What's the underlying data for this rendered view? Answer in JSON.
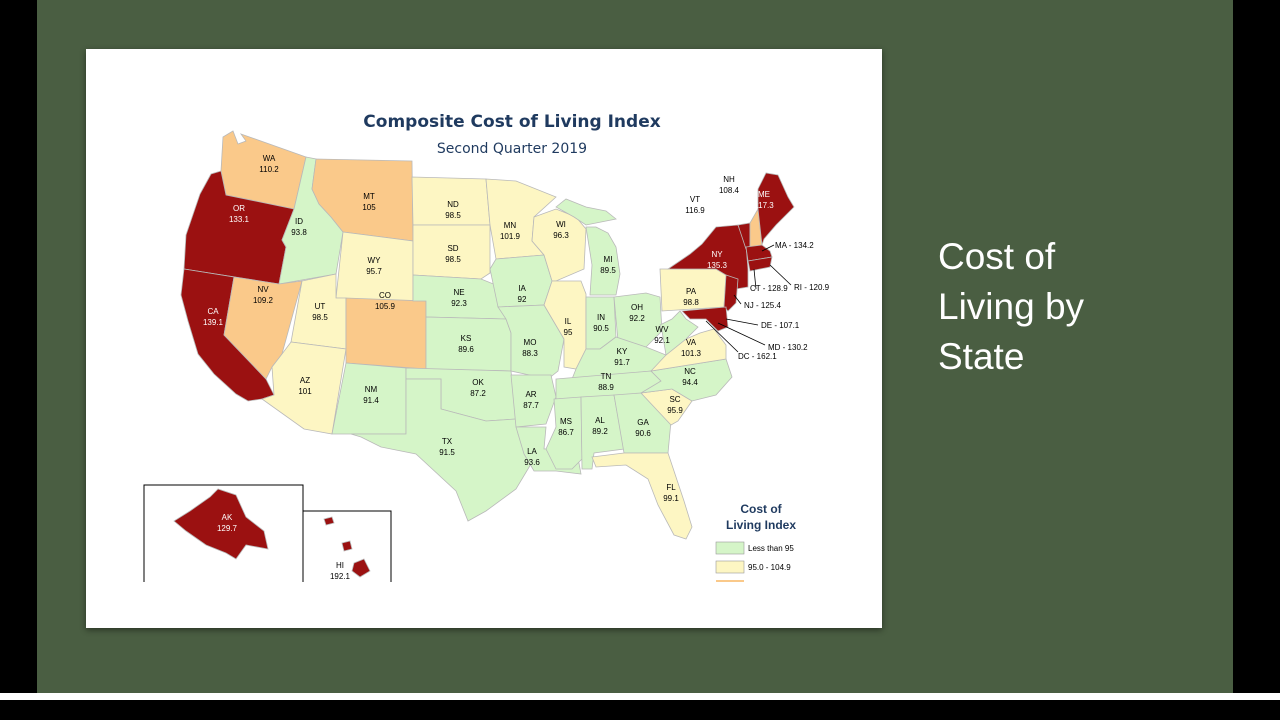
{
  "slide": {
    "title_lines": [
      "Cost of",
      "Living by",
      "State"
    ]
  },
  "map": {
    "title": "Composite Cost of Living Index",
    "subtitle": "Second Quarter 2019",
    "legend": {
      "title_lines": [
        "Cost of",
        "Living Index"
      ],
      "items": [
        {
          "label": "Less than 95",
          "color": "#d5f5c8"
        },
        {
          "label": "95.0 - 104.9",
          "color": "#fdf6c3"
        },
        {
          "label": "",
          "color": "#fac98a"
        }
      ]
    },
    "colors": {
      "low": "#d5f5c8",
      "mid": "#fdf6c3",
      "high": "#fac98a",
      "highest": "#9b1111",
      "slide_background": "#4a5e42"
    },
    "states": {
      "WA": {
        "abbr": "WA",
        "value": "110.2"
      },
      "OR": {
        "abbr": "OR",
        "value": "133.1"
      },
      "CA": {
        "abbr": "CA",
        "value": "139.1"
      },
      "ID": {
        "abbr": "ID",
        "value": "93.8"
      },
      "NV": {
        "abbr": "NV",
        "value": "109.2"
      },
      "MT": {
        "abbr": "MT",
        "value": "105"
      },
      "WY": {
        "abbr": "WY",
        "value": "95.7"
      },
      "UT": {
        "abbr": "UT",
        "value": "98.5"
      },
      "AZ": {
        "abbr": "AZ",
        "value": "101"
      },
      "CO": {
        "abbr": "CO",
        "value": "105.9"
      },
      "NM": {
        "abbr": "NM",
        "value": "91.4"
      },
      "ND": {
        "abbr": "ND",
        "value": "98.5"
      },
      "SD": {
        "abbr": "SD",
        "value": "98.5"
      },
      "NE": {
        "abbr": "NE",
        "value": "92.3"
      },
      "KS": {
        "abbr": "KS",
        "value": "89.6"
      },
      "OK": {
        "abbr": "OK",
        "value": "87.2"
      },
      "TX": {
        "abbr": "TX",
        "value": "91.5"
      },
      "MN": {
        "abbr": "MN",
        "value": "101.9"
      },
      "IA": {
        "abbr": "IA",
        "value": "92"
      },
      "MO": {
        "abbr": "MO",
        "value": "88.3"
      },
      "AR": {
        "abbr": "AR",
        "value": "87.7"
      },
      "LA": {
        "abbr": "LA",
        "value": "93.6"
      },
      "WI": {
        "abbr": "WI",
        "value": "96.3"
      },
      "IL": {
        "abbr": "IL",
        "value": "95"
      },
      "MI": {
        "abbr": "MI",
        "value": "89.5"
      },
      "IN": {
        "abbr": "IN",
        "value": "90.5"
      },
      "OH": {
        "abbr": "OH",
        "value": "92.2"
      },
      "KY": {
        "abbr": "KY",
        "value": "91.7"
      },
      "TN": {
        "abbr": "TN",
        "value": "88.9"
      },
      "MS": {
        "abbr": "MS",
        "value": "86.7"
      },
      "AL": {
        "abbr": "AL",
        "value": "89.2"
      },
      "GA": {
        "abbr": "GA",
        "value": "90.6"
      },
      "FL": {
        "abbr": "FL",
        "value": "99.1"
      },
      "SC": {
        "abbr": "SC",
        "value": "95.9"
      },
      "NC": {
        "abbr": "NC",
        "value": "94.4"
      },
      "VA": {
        "abbr": "VA",
        "value": "101.3"
      },
      "WV": {
        "abbr": "WV",
        "value": "92.1"
      },
      "PA": {
        "abbr": "PA",
        "value": "98.8"
      },
      "NY": {
        "abbr": "NY",
        "value": "135.3"
      },
      "VT": {
        "abbr": "VT",
        "value": "116.9"
      },
      "NH": {
        "abbr": "NH",
        "value": "108.4"
      },
      "ME": {
        "abbr": "ME",
        "value": "117.3"
      },
      "AK": {
        "abbr": "AK",
        "value": "129.7"
      },
      "HI": {
        "abbr": "HI",
        "value": "192.1"
      }
    },
    "callouts": {
      "MA": "MA - 134.2",
      "RI": "RI - 120.9",
      "CT": "CT - 128.9",
      "NJ": "NJ - 125.4",
      "DE": "DE - 107.1",
      "MD": "MD - 130.2",
      "DC": "DC - 162.1"
    }
  }
}
